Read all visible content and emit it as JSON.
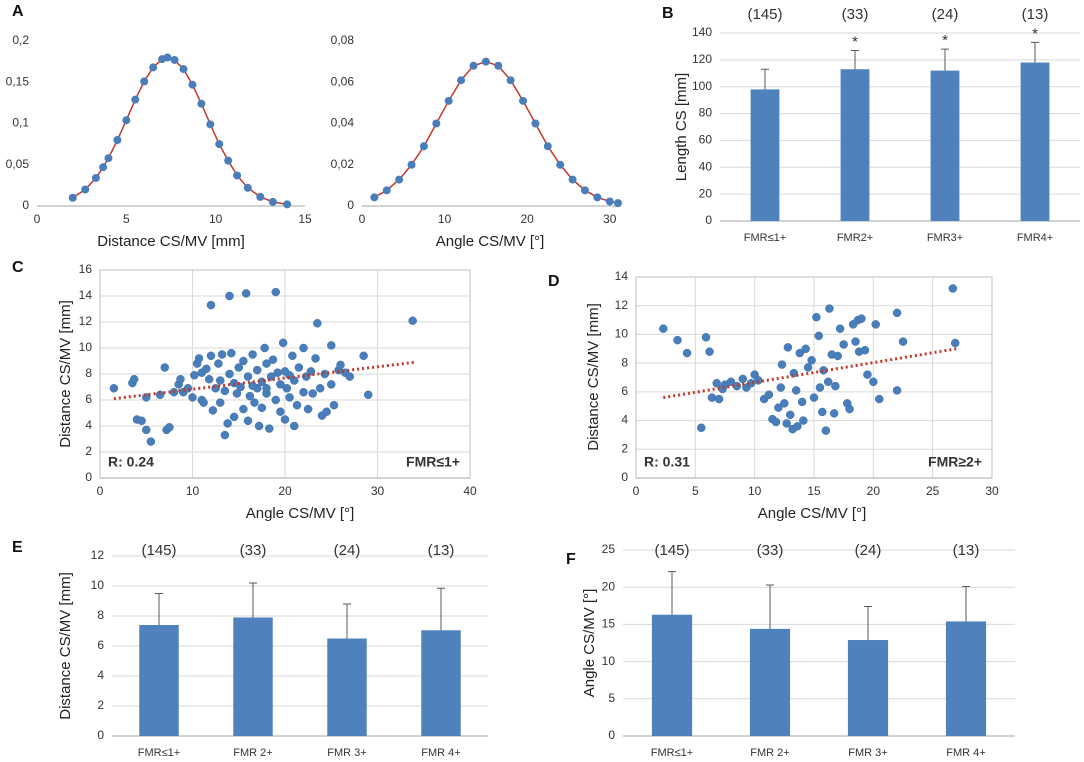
{
  "chart_data": [
    {
      "type": "line",
      "panel_label": "A",
      "xlabel": "Distance CS/MV [mm]",
      "x": [
        2,
        2.7,
        3.3,
        3.7,
        4,
        4.5,
        5,
        5.5,
        6,
        6.5,
        7,
        7.3,
        7.7,
        8.2,
        8.7,
        9.2,
        9.7,
        10.2,
        10.7,
        11.2,
        11.8,
        12.5,
        13.2,
        14
      ],
      "values": [
        0.01,
        0.02,
        0.034,
        0.047,
        0.058,
        0.08,
        0.104,
        0.129,
        0.151,
        0.168,
        0.178,
        0.18,
        0.177,
        0.166,
        0.147,
        0.124,
        0.099,
        0.075,
        0.055,
        0.037,
        0.022,
        0.011,
        0.005,
        0.002
      ],
      "marker_color": "#4a7ebb",
      "line_color": "#c0392b",
      "xlim": [
        0,
        15
      ],
      "xticks": [
        0,
        5,
        10,
        15
      ],
      "ylim": [
        0,
        0.2
      ],
      "yticks": [
        0,
        {
          "value": 0.05,
          "label": "0,05"
        },
        {
          "value": 0.1,
          "label": "0,1"
        },
        {
          "value": 0.15,
          "label": "0,15"
        },
        {
          "value": 0.2,
          "label": "0,2"
        }
      ],
      "grid": false
    },
    {
      "type": "line",
      "xlabel": "Angle CS/MV [°]",
      "x": [
        1.5,
        3,
        4.5,
        6,
        7.5,
        9,
        10.5,
        12,
        13.5,
        15,
        16.5,
        18,
        19.5,
        21,
        22.5,
        24,
        25.5,
        27,
        28.5,
        30,
        31
      ],
      "values": [
        0.0042,
        0.0076,
        0.0128,
        0.02,
        0.029,
        0.04,
        0.051,
        0.061,
        0.068,
        0.07,
        0.068,
        0.061,
        0.051,
        0.04,
        0.029,
        0.02,
        0.0128,
        0.0076,
        0.0042,
        0.0022,
        0.0014
      ],
      "marker_color": "#4a7ebb",
      "line_color": "#c0392b",
      "xlim": [
        0,
        31
      ],
      "xticks": [
        0,
        10,
        20,
        30
      ],
      "ylim": [
        0,
        0.08
      ],
      "yticks": [
        0,
        {
          "value": 0.02,
          "label": "0,02"
        },
        {
          "value": 0.04,
          "label": "0,04"
        },
        {
          "value": 0.06,
          "label": "0,06"
        },
        {
          "value": 0.08,
          "label": "0,08"
        }
      ],
      "grid": false
    },
    {
      "type": "bar",
      "panel_label": "B",
      "ylabel": "Length CS [mm]",
      "categories": [
        "FMR≤1+",
        "FMR2+",
        "FMR3+",
        "FMR4+"
      ],
      "values": [
        98,
        113,
        112,
        118
      ],
      "errors": [
        15,
        14,
        16,
        15
      ],
      "count_labels": [
        "(145)",
        "(33)",
        "(24)",
        "(13)"
      ],
      "significance": [
        null,
        "*",
        "*",
        "*"
      ],
      "color": "#4f81bd",
      "ylim": [
        0,
        140
      ],
      "yticks": [
        0,
        20,
        40,
        60,
        80,
        100,
        120,
        140
      ],
      "grid": true
    },
    {
      "type": "scatter",
      "panel_label": "C",
      "xlabel": "Angle CS/MV [°]",
      "ylabel": "Distance CS/MV [mm]",
      "r_label": "R: 0.24",
      "group_label": "FMR≤1+",
      "x": [
        1.5,
        3.5,
        3.7,
        4,
        4.5,
        5,
        5.5,
        5,
        6.5,
        7,
        7.2,
        7.5,
        8,
        8.5,
        8.7,
        9,
        9.5,
        10,
        10.2,
        10.5,
        10.7,
        11,
        11.2,
        11.5,
        11.8,
        12,
        12,
        12.2,
        12.5,
        12.8,
        13,
        13.2,
        13.5,
        13.5,
        13.8,
        14,
        14,
        14.2,
        14.5,
        14.5,
        14.8,
        15,
        15.2,
        15.5,
        15.5,
        15.8,
        16,
        16,
        16.2,
        16.5,
        16.7,
        17,
        17,
        17.2,
        17.5,
        17.5,
        17.8,
        18,
        18,
        18.3,
        18.5,
        18.7,
        19,
        19,
        19.2,
        19.5,
        19.5,
        19.8,
        20,
        20,
        20.2,
        20.5,
        20.8,
        21,
        21,
        21.3,
        21.5,
        22,
        22,
        22.3,
        22.5,
        22.8,
        23,
        23.3,
        23.5,
        23.8,
        24,
        24.3,
        24.5,
        25,
        25,
        25.3,
        25.8,
        26,
        26.5,
        27,
        28.5,
        29,
        33.8,
        16.5,
        13,
        11,
        18,
        20.5
      ],
      "values": [
        6.9,
        7.3,
        7.6,
        4.5,
        4.4,
        3.7,
        2.8,
        6.2,
        6.4,
        8.5,
        3.7,
        3.9,
        6.6,
        7.2,
        7.6,
        6.6,
        6.9,
        6.2,
        7.9,
        8.8,
        9.2,
        6,
        5.8,
        8.4,
        7.6,
        13.3,
        9.4,
        5.2,
        6.9,
        8.8,
        7.5,
        9.5,
        3.3,
        6.7,
        4.2,
        14,
        8,
        9.6,
        4.7,
        7.3,
        6.5,
        8.5,
        7,
        5.3,
        9,
        14.2,
        4.4,
        7.8,
        6.3,
        9.5,
        5.8,
        8.3,
        6.9,
        4,
        7.4,
        5.4,
        10,
        6.5,
        8.8,
        3.8,
        7.8,
        9.1,
        14.3,
        6,
        8.1,
        5.1,
        7.2,
        10.4,
        4.5,
        8.2,
        6.9,
        6.2,
        9.4,
        4,
        7.5,
        5.6,
        8.5,
        6.6,
        10,
        7.8,
        5.3,
        8.2,
        6.5,
        9.2,
        11.9,
        6.9,
        4.8,
        8,
        5.1,
        7.2,
        10.2,
        5.6,
        8.3,
        8.7,
        8.1,
        7.8,
        9.4,
        6.4,
        12.1,
        7.1,
        5.8,
        8.1,
        6.9,
        7.9
      ],
      "trend_x": [
        1.5,
        34
      ],
      "trend_y": [
        6.1,
        8.9
      ],
      "marker_color": "#4a7ebb",
      "trend_color": "#c0392b",
      "xlim": [
        0,
        40
      ],
      "xticks": [
        0,
        10,
        20,
        30,
        40
      ],
      "ylim": [
        0,
        16
      ],
      "yticks": [
        0,
        2,
        4,
        6,
        8,
        10,
        12,
        14,
        16
      ],
      "grid": true
    },
    {
      "type": "scatter",
      "panel_label": "D",
      "xlabel": "Angle CS/MV [°]",
      "ylabel": "Distance CS/MV [mm]",
      "r_label": "R: 0.31",
      "group_label": "FMR≥2+",
      "x": [
        2.3,
        3.5,
        4.3,
        5.5,
        5.9,
        6.2,
        6.4,
        6.8,
        7,
        7.3,
        7.5,
        8,
        8.5,
        9,
        9.3,
        9.7,
        10,
        10.3,
        10.8,
        11.2,
        11.5,
        11.8,
        12,
        12.2,
        12.3,
        12.5,
        12.7,
        12.8,
        13,
        13.2,
        13.3,
        13.5,
        13.6,
        13.8,
        14,
        14.1,
        14.3,
        14.5,
        14.8,
        15,
        15.2,
        15.4,
        15.5,
        15.7,
        15.8,
        16,
        16.2,
        16.3,
        16.5,
        16.7,
        16.8,
        17,
        17.2,
        17.5,
        17.8,
        18,
        18.3,
        18.5,
        18.7,
        18.8,
        19,
        19.3,
        19.5,
        20,
        20.2,
        20.5,
        22,
        22,
        22.5,
        26.7,
        26.9
      ],
      "values": [
        10.4,
        9.6,
        8.7,
        3.5,
        9.8,
        8.8,
        5.6,
        6.6,
        5.5,
        6.2,
        6.5,
        6.7,
        6.4,
        6.9,
        6.3,
        6.6,
        7.2,
        6.8,
        5.5,
        5.8,
        4.1,
        3.9,
        4.9,
        6.3,
        7.9,
        5.2,
        3.8,
        9.1,
        4.4,
        3.4,
        7.3,
        6.1,
        3.6,
        8.7,
        5.3,
        4,
        9,
        7.7,
        8.2,
        5.6,
        11.2,
        9.9,
        6.3,
        4.6,
        7.5,
        3.3,
        6.7,
        11.8,
        8.6,
        4.5,
        6.4,
        8.5,
        10.4,
        9.3,
        5.2,
        4.8,
        10.7,
        9.5,
        11,
        8.8,
        11.1,
        8.9,
        7.2,
        6.7,
        10.7,
        5.5,
        11.5,
        6.1,
        9.5,
        13.2,
        9.4
      ],
      "trend_x": [
        2.3,
        27
      ],
      "trend_y": [
        5.6,
        9
      ],
      "marker_color": "#4a7ebb",
      "trend_color": "#c0392b",
      "xlim": [
        0,
        30
      ],
      "xticks": [
        0,
        5,
        10,
        15,
        20,
        25,
        30
      ],
      "ylim": [
        0,
        14
      ],
      "yticks": [
        0,
        2,
        4,
        6,
        8,
        10,
        12,
        14
      ],
      "grid": true
    },
    {
      "type": "bar",
      "panel_label": "E",
      "ylabel": "Distance CS/MV [mm]",
      "categories": [
        "FMR≤1+",
        "FMR 2+",
        "FMR 3+",
        "FMR 4+"
      ],
      "values": [
        7.4,
        7.9,
        6.5,
        7.05
      ],
      "errors": [
        2.1,
        2.3,
        2.3,
        2.8
      ],
      "count_labels": [
        "(145)",
        "(33)",
        "(24)",
        "(13)"
      ],
      "color": "#4f81bd",
      "ylim": [
        0,
        12
      ],
      "yticks": [
        0,
        2,
        4,
        6,
        8,
        10,
        12
      ],
      "grid": true
    },
    {
      "type": "bar",
      "panel_label": "F",
      "ylabel": "Angle CS/MV [°]",
      "categories": [
        "FMR≤1+",
        "FMR 2+",
        "FMR 3+",
        "FMR 4+"
      ],
      "values": [
        16.3,
        14.4,
        12.9,
        15.4
      ],
      "errors": [
        5.8,
        5.9,
        4.5,
        4.7
      ],
      "count_labels": [
        "(145)",
        "(33)",
        "(24)",
        "(13)"
      ],
      "color": "#4f81bd",
      "ylim": [
        0,
        25
      ],
      "yticks": [
        0,
        5,
        10,
        15,
        20,
        25
      ],
      "grid": true
    }
  ]
}
